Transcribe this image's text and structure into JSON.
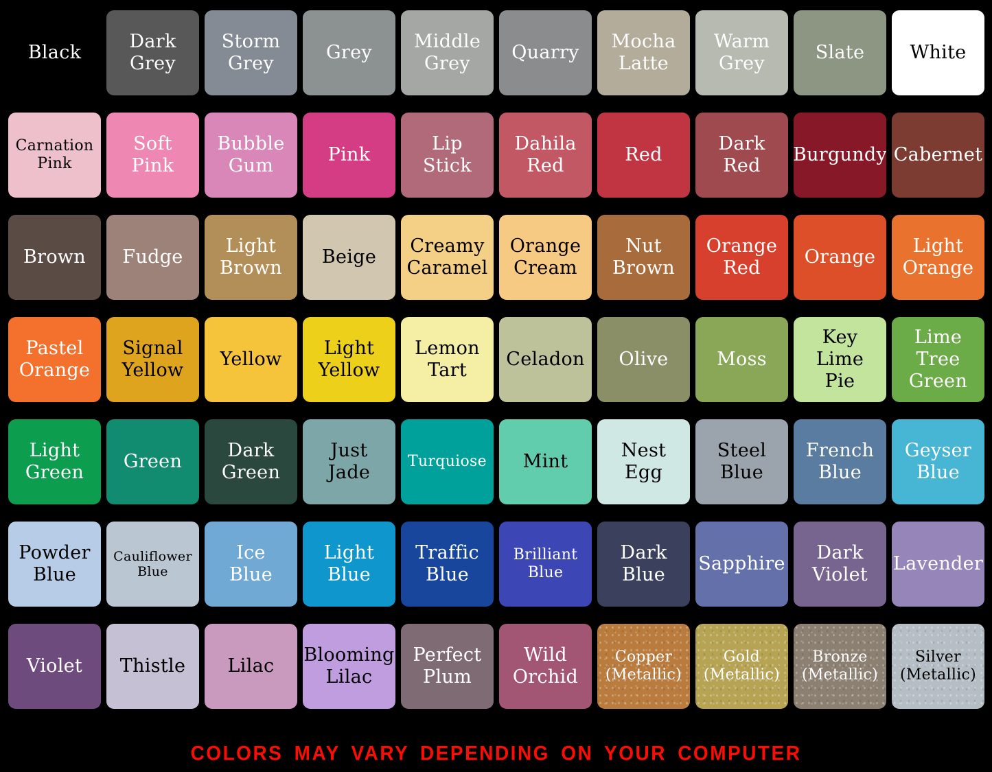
{
  "page": {
    "background": "#000000"
  },
  "footer": {
    "warning": "COLORS MAY VARY DEPENDING ON YOUR COMPUTER",
    "color": "#fa0d05"
  },
  "chart_data": {
    "type": "table",
    "title": "Color swatch chart",
    "grid": {
      "rows": 7,
      "columns": 10
    },
    "swatches": [
      {
        "name": "Black",
        "lines": [
          "Black"
        ],
        "hex": "#000000",
        "text_color": "#ffffff",
        "metallic": false
      },
      {
        "name": "Dark Grey",
        "lines": [
          "Dark",
          "Grey"
        ],
        "hex": "#585858",
        "text_color": "#ffffff",
        "metallic": false
      },
      {
        "name": "Storm Grey",
        "lines": [
          "Storm",
          "Grey"
        ],
        "hex": "#858b94",
        "text_color": "#ffffff",
        "metallic": false
      },
      {
        "name": "Grey",
        "lines": [
          "Grey"
        ],
        "hex": "#8c9292",
        "text_color": "#ffffff",
        "metallic": false
      },
      {
        "name": "Middle Grey",
        "lines": [
          "Middle",
          "Grey"
        ],
        "hex": "#a5a7a4",
        "text_color": "#ffffff",
        "metallic": false
      },
      {
        "name": "Quarry",
        "lines": [
          "Quarry"
        ],
        "hex": "#8a8c8d",
        "text_color": "#ffffff",
        "metallic": false
      },
      {
        "name": "Mocha Latte",
        "lines": [
          "Mocha",
          "Latte"
        ],
        "hex": "#b3ac9a",
        "text_color": "#ffffff",
        "metallic": false
      },
      {
        "name": "Warm Grey",
        "lines": [
          "Warm",
          "Grey"
        ],
        "hex": "#b6bab0",
        "text_color": "#ffffff",
        "metallic": false
      },
      {
        "name": "Slate",
        "lines": [
          "Slate"
        ],
        "hex": "#8c9682",
        "text_color": "#ffffff",
        "metallic": false
      },
      {
        "name": "White",
        "lines": [
          "White"
        ],
        "hex": "#ffffff",
        "text_color": "#000000",
        "metallic": false
      },
      {
        "name": "Carnation Pink",
        "lines": [
          "Carnation",
          "Pink"
        ],
        "hex": "#eec0cb",
        "text_color": "#000000",
        "metallic": false
      },
      {
        "name": "Soft Pink",
        "lines": [
          "Soft",
          "Pink"
        ],
        "hex": "#ee87b2",
        "text_color": "#ffffff",
        "metallic": false
      },
      {
        "name": "Bubble Gum",
        "lines": [
          "Bubble",
          "Gum"
        ],
        "hex": "#d987b8",
        "text_color": "#ffffff",
        "metallic": false
      },
      {
        "name": "Pink",
        "lines": [
          "Pink"
        ],
        "hex": "#d43d83",
        "text_color": "#ffffff",
        "metallic": false
      },
      {
        "name": "Lip Stick",
        "lines": [
          "Lip",
          "Stick"
        ],
        "hex": "#b06a79",
        "text_color": "#ffffff",
        "metallic": false
      },
      {
        "name": "Dahila Red",
        "lines": [
          "Dahila",
          "Red"
        ],
        "hex": "#c25863",
        "text_color": "#ffffff",
        "metallic": false
      },
      {
        "name": "Red",
        "lines": [
          "Red"
        ],
        "hex": "#c03541",
        "text_color": "#ffffff",
        "metallic": false
      },
      {
        "name": "Dark Red",
        "lines": [
          "Dark",
          "Red"
        ],
        "hex": "#9f4a4f",
        "text_color": "#ffffff",
        "metallic": false
      },
      {
        "name": "Burgundy",
        "lines": [
          "Burgundy"
        ],
        "hex": "#871827",
        "text_color": "#ffffff",
        "metallic": false
      },
      {
        "name": "Cabernet",
        "lines": [
          "Cabernet"
        ],
        "hex": "#7d3c32",
        "text_color": "#ffffff",
        "metallic": false
      },
      {
        "name": "Brown",
        "lines": [
          "Brown"
        ],
        "hex": "#5a4b45",
        "text_color": "#ffffff",
        "metallic": false
      },
      {
        "name": "Fudge",
        "lines": [
          "Fudge"
        ],
        "hex": "#9d8279",
        "text_color": "#ffffff",
        "metallic": false
      },
      {
        "name": "Light Brown",
        "lines": [
          "Light",
          "Brown"
        ],
        "hex": "#b28e58",
        "text_color": "#ffffff",
        "metallic": false
      },
      {
        "name": "Beige",
        "lines": [
          "Beige"
        ],
        "hex": "#d1c6b0",
        "text_color": "#000000",
        "metallic": false
      },
      {
        "name": "Creamy Caramel",
        "lines": [
          "Creamy",
          "Caramel"
        ],
        "hex": "#f4d086",
        "text_color": "#000000",
        "metallic": false
      },
      {
        "name": "Orange Cream",
        "lines": [
          "Orange",
          "Cream"
        ],
        "hex": "#f7ca84",
        "text_color": "#000000",
        "metallic": false
      },
      {
        "name": "Nut Brown",
        "lines": [
          "Nut",
          "Brown"
        ],
        "hex": "#a86c3c",
        "text_color": "#ffffff",
        "metallic": false
      },
      {
        "name": "Orange Red",
        "lines": [
          "Orange",
          "Red"
        ],
        "hex": "#d8402e",
        "text_color": "#ffffff",
        "metallic": false
      },
      {
        "name": "Orange",
        "lines": [
          "Orange"
        ],
        "hex": "#dc4f28",
        "text_color": "#ffffff",
        "metallic": false
      },
      {
        "name": "Light Orange",
        "lines": [
          "Light",
          "Orange"
        ],
        "hex": "#e9722e",
        "text_color": "#ffffff",
        "metallic": false
      },
      {
        "name": "Pastel Orange",
        "lines": [
          "Pastel",
          "Orange"
        ],
        "hex": "#f3712d",
        "text_color": "#ffffff",
        "metallic": false
      },
      {
        "name": "Signal Yellow",
        "lines": [
          "Signal",
          "Yellow"
        ],
        "hex": "#dea41e",
        "text_color": "#000000",
        "metallic": false
      },
      {
        "name": "Yellow",
        "lines": [
          "Yellow"
        ],
        "hex": "#f5c43a",
        "text_color": "#000000",
        "metallic": false
      },
      {
        "name": "Light Yellow",
        "lines": [
          "Light",
          "Yellow"
        ],
        "hex": "#edd01a",
        "text_color": "#000000",
        "metallic": false
      },
      {
        "name": "Lemon Tart",
        "lines": [
          "Lemon",
          "Tart"
        ],
        "hex": "#f5efa5",
        "text_color": "#000000",
        "metallic": false
      },
      {
        "name": "Celadon",
        "lines": [
          "Celadon"
        ],
        "hex": "#bdc29a",
        "text_color": "#000000",
        "metallic": false
      },
      {
        "name": "Olive",
        "lines": [
          "Olive"
        ],
        "hex": "#8b8f68",
        "text_color": "#ffffff",
        "metallic": false
      },
      {
        "name": "Moss",
        "lines": [
          "Moss"
        ],
        "hex": "#8aa757",
        "text_color": "#ffffff",
        "metallic": false
      },
      {
        "name": "Key Lime Pie",
        "lines": [
          "Key",
          "Lime",
          "Pie"
        ],
        "hex": "#c2e49c",
        "text_color": "#000000",
        "metallic": false
      },
      {
        "name": "Lime Tree Green",
        "lines": [
          "Lime",
          "Tree",
          "Green"
        ],
        "hex": "#6cac48",
        "text_color": "#ffffff",
        "metallic": false
      },
      {
        "name": "Light Green",
        "lines": [
          "Light",
          "Green"
        ],
        "hex": "#0d9d4f",
        "text_color": "#ffffff",
        "metallic": false
      },
      {
        "name": "Green",
        "lines": [
          "Green"
        ],
        "hex": "#128c71",
        "text_color": "#ffffff",
        "metallic": false
      },
      {
        "name": "Dark Green",
        "lines": [
          "Dark",
          "Green"
        ],
        "hex": "#2a483d",
        "text_color": "#ffffff",
        "metallic": false
      },
      {
        "name": "Just Jade",
        "lines": [
          "Just",
          "Jade"
        ],
        "hex": "#7ca6a7",
        "text_color": "#000000",
        "metallic": false
      },
      {
        "name": "Turquiose",
        "lines": [
          "Turquiose"
        ],
        "hex": "#00a19a",
        "text_color": "#ffffff",
        "metallic": false
      },
      {
        "name": "Mint",
        "lines": [
          "Mint"
        ],
        "hex": "#62cdad",
        "text_color": "#000000",
        "metallic": false
      },
      {
        "name": "Nest Egg",
        "lines": [
          "Nest",
          "Egg"
        ],
        "hex": "#d0e8e3",
        "text_color": "#000000",
        "metallic": false
      },
      {
        "name": "Steel Blue",
        "lines": [
          "Steel",
          "Blue"
        ],
        "hex": "#9ba3ad",
        "text_color": "#000000",
        "metallic": false
      },
      {
        "name": "French Blue",
        "lines": [
          "French",
          "Blue"
        ],
        "hex": "#5b7ca1",
        "text_color": "#ffffff",
        "metallic": false
      },
      {
        "name": "Geyser Blue",
        "lines": [
          "Geyser",
          "Blue"
        ],
        "hex": "#47b6d5",
        "text_color": "#ffffff",
        "metallic": false
      },
      {
        "name": "Powder Blue",
        "lines": [
          "Powder",
          "Blue"
        ],
        "hex": "#b7cde7",
        "text_color": "#000000",
        "metallic": false
      },
      {
        "name": "Cauliflower Blue",
        "lines": [
          "Cauliflower",
          "Blue"
        ],
        "hex": "#bbc6d3",
        "text_color": "#000000",
        "metallic": false
      },
      {
        "name": "Ice Blue",
        "lines": [
          "Ice",
          "Blue"
        ],
        "hex": "#71a9d5",
        "text_color": "#ffffff",
        "metallic": false
      },
      {
        "name": "Light Blue",
        "lines": [
          "Light",
          "Blue"
        ],
        "hex": "#0e96cd",
        "text_color": "#ffffff",
        "metallic": false
      },
      {
        "name": "Traffic Blue",
        "lines": [
          "Traffic",
          "Blue"
        ],
        "hex": "#17469c",
        "text_color": "#ffffff",
        "metallic": false
      },
      {
        "name": "Brilliant Blue",
        "lines": [
          "Brilliant",
          "Blue"
        ],
        "hex": "#3c46b5",
        "text_color": "#ffffff",
        "metallic": false
      },
      {
        "name": "Dark Blue",
        "lines": [
          "Dark",
          "Blue"
        ],
        "hex": "#3b405d",
        "text_color": "#ffffff",
        "metallic": false
      },
      {
        "name": "Sapphire",
        "lines": [
          "Sapphire"
        ],
        "hex": "#6370a9",
        "text_color": "#ffffff",
        "metallic": false
      },
      {
        "name": "Dark Violet",
        "lines": [
          "Dark",
          "Violet"
        ],
        "hex": "#78658f",
        "text_color": "#ffffff",
        "metallic": false
      },
      {
        "name": "Lavender",
        "lines": [
          "Lavender"
        ],
        "hex": "#9685b9",
        "text_color": "#ffffff",
        "metallic": false
      },
      {
        "name": "Violet",
        "lines": [
          "Violet"
        ],
        "hex": "#6e4b7d",
        "text_color": "#ffffff",
        "metallic": false
      },
      {
        "name": "Thistle",
        "lines": [
          "Thistle"
        ],
        "hex": "#c6c0d5",
        "text_color": "#000000",
        "metallic": false
      },
      {
        "name": "Lilac",
        "lines": [
          "Lilac"
        ],
        "hex": "#ca9abe",
        "text_color": "#000000",
        "metallic": false
      },
      {
        "name": "Blooming Lilac",
        "lines": [
          "Blooming",
          "Lilac"
        ],
        "hex": "#c09dde",
        "text_color": "#000000",
        "metallic": false
      },
      {
        "name": "Perfect Plum",
        "lines": [
          "Perfect",
          "Plum"
        ],
        "hex": "#7f6b73",
        "text_color": "#ffffff",
        "metallic": false
      },
      {
        "name": "Wild Orchid",
        "lines": [
          "Wild",
          "Orchid"
        ],
        "hex": "#a35674",
        "text_color": "#ffffff",
        "metallic": false
      },
      {
        "name": "Copper (Metallic)",
        "lines": [
          "Copper",
          "(Metallic)"
        ],
        "hex": "#b97c3e",
        "text_color": "#ffffff",
        "metallic": true
      },
      {
        "name": "Gold (Metallic)",
        "lines": [
          "Gold",
          "(Metallic)"
        ],
        "hex": "#b6a454",
        "text_color": "#ffffff",
        "metallic": true
      },
      {
        "name": "Bronze (Metallic)",
        "lines": [
          "Bronze",
          "(Metallic)"
        ],
        "hex": "#8c8073",
        "text_color": "#ffffff",
        "metallic": true
      },
      {
        "name": "Silver (Metallic)",
        "lines": [
          "Silver",
          "(Metallic)"
        ],
        "hex": "#b5bdc5",
        "text_color": "#000000",
        "metallic": true
      }
    ]
  }
}
